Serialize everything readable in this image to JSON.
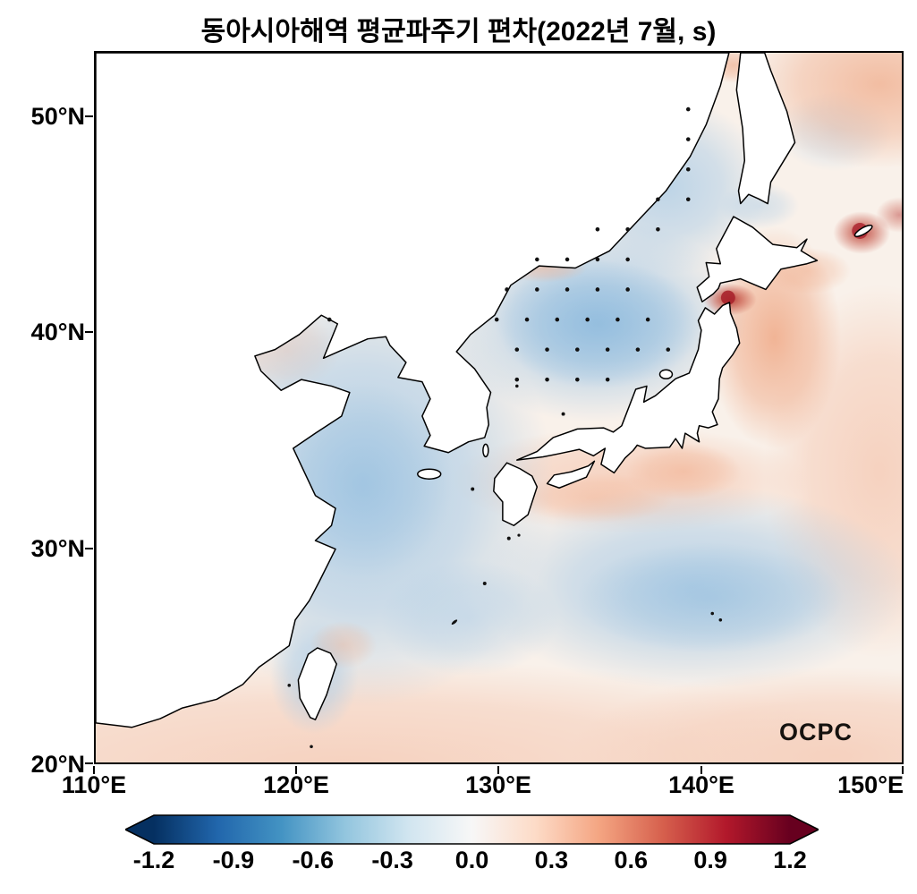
{
  "title": "동아시아해역 평균파주기 편차(2022년 7월, s)",
  "logo": "OCPC",
  "axes": {
    "yticks": [
      "50°N",
      "40°N",
      "30°N",
      "20°N"
    ],
    "xticks": [
      "110°E",
      "120°E",
      "130°E",
      "140°E",
      "150°E"
    ]
  },
  "colorbar": {
    "ticks": [
      "-1.2",
      "-0.9",
      "-0.6",
      "-0.3",
      "0.0",
      "0.3",
      "0.6",
      "0.9",
      "1.2"
    ],
    "range": [
      -1.2,
      1.2
    ],
    "extend": "both",
    "colormap": "RdBu_r",
    "colors": {
      "min": "#053061",
      "zero": "#f7f7f7",
      "max": "#67001f"
    },
    "unit": "s"
  },
  "chart_data": {
    "type": "heatmap",
    "title": "동아시아해역 평균파주기 편차(2022년 7월, s)",
    "variable": "mean wave period anomaly",
    "period_label": "2022년 7월",
    "unit": "s",
    "lon_range": [
      110,
      150
    ],
    "lat_range": [
      20,
      53
    ],
    "colormap": "RdBu_r",
    "color_range": [
      -1.2,
      1.2
    ],
    "colorbar_ticks": [
      -1.2,
      -0.9,
      -0.6,
      -0.3,
      0.0,
      0.3,
      0.6,
      0.9,
      1.2
    ],
    "grid_estimate": {
      "note": "anomaly (s) estimated from shading; null = land",
      "lons": [
        110,
        115,
        120,
        125,
        130,
        135,
        140,
        145,
        150
      ],
      "values_by_lat": [
        {
          "lat": 20,
          "values": [
            0.1,
            0.15,
            0.1,
            0.05,
            0.1,
            0.1,
            0.1,
            0.15,
            0.1
          ]
        },
        {
          "lat": 25,
          "values": [
            0.1,
            0.0,
            -0.2,
            -0.1,
            0.0,
            0.05,
            0.0,
            0.1,
            0.1
          ]
        },
        {
          "lat": 30,
          "values": [
            null,
            null,
            -0.2,
            -0.2,
            -0.1,
            -0.2,
            -0.3,
            -0.3,
            -0.1
          ]
        },
        {
          "lat": 35,
          "values": [
            null,
            null,
            -0.3,
            -0.3,
            -0.2,
            0.2,
            0.1,
            0.0,
            0.1
          ]
        },
        {
          "lat": 40,
          "values": [
            null,
            null,
            -0.1,
            null,
            -0.4,
            -0.5,
            0.3,
            0.5,
            0.2
          ]
        },
        {
          "lat": 45,
          "values": [
            null,
            null,
            null,
            null,
            null,
            -0.4,
            0.1,
            0.3,
            0.5
          ]
        },
        {
          "lat": 50,
          "values": [
            null,
            null,
            null,
            null,
            null,
            -0.3,
            0.1,
            0.2,
            0.3
          ]
        }
      ]
    },
    "features": {
      "max_positive_spot": {
        "lon": 141.5,
        "lat": 41.8,
        "value": 1.0
      },
      "secondary_positive_spot": {
        "lon": 148.3,
        "lat": 44.8,
        "value": 0.9
      },
      "min_negative_region": {
        "lon": 134.0,
        "lat": 40.0,
        "value": -0.5
      }
    },
    "stipple_rows": [
      {
        "lat": 50.4,
        "lons": [
          139.4
        ]
      },
      {
        "lat": 49.0,
        "lons": [
          139.4
        ]
      },
      {
        "lat": 47.6,
        "lons": [
          139.4
        ]
      },
      {
        "lat": 46.2,
        "lons": [
          137.9,
          139.4
        ]
      },
      {
        "lat": 44.8,
        "lons": [
          134.9,
          136.4,
          137.9
        ]
      },
      {
        "lat": 43.4,
        "lons": [
          131.9,
          133.4,
          134.9,
          136.4
        ]
      },
      {
        "lat": 42.0,
        "lons": [
          130.4,
          131.9,
          133.4,
          134.9,
          136.4
        ]
      },
      {
        "lat": 40.6,
        "lons": [
          121.6,
          129.9,
          131.4,
          132.9,
          134.4,
          135.9,
          137.4
        ]
      },
      {
        "lat": 39.2,
        "lons": [
          130.9,
          132.4,
          133.9,
          135.4,
          136.9,
          138.4
        ]
      },
      {
        "lat": 37.8,
        "lons": [
          130.9,
          132.4,
          133.9,
          135.4
        ]
      }
    ]
  }
}
